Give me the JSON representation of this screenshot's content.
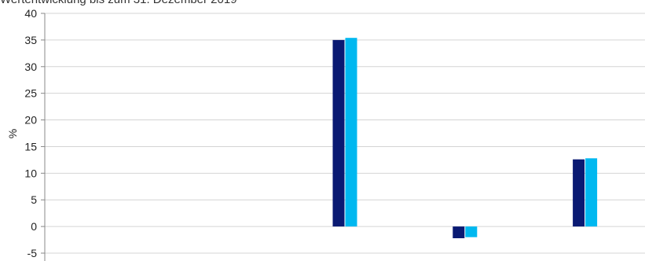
{
  "chart_data": {
    "type": "bar",
    "title": "Wertentwicklung bis zum 31. Dezember 2019",
    "xlabel": "",
    "ylabel": "%",
    "ylim": [
      -5,
      40
    ],
    "yticks": [
      40,
      35,
      30,
      25,
      20,
      15,
      10,
      5,
      0,
      -5
    ],
    "grid": true,
    "categories": [
      "",
      "",
      "",
      "",
      ""
    ],
    "series": [
      {
        "color": "#0a1a73",
        "values": [
          null,
          null,
          35.0,
          -2.2,
          12.6
        ]
      },
      {
        "color": "#00b8f0",
        "values": [
          null,
          null,
          35.4,
          -2.0,
          12.8
        ]
      }
    ]
  }
}
